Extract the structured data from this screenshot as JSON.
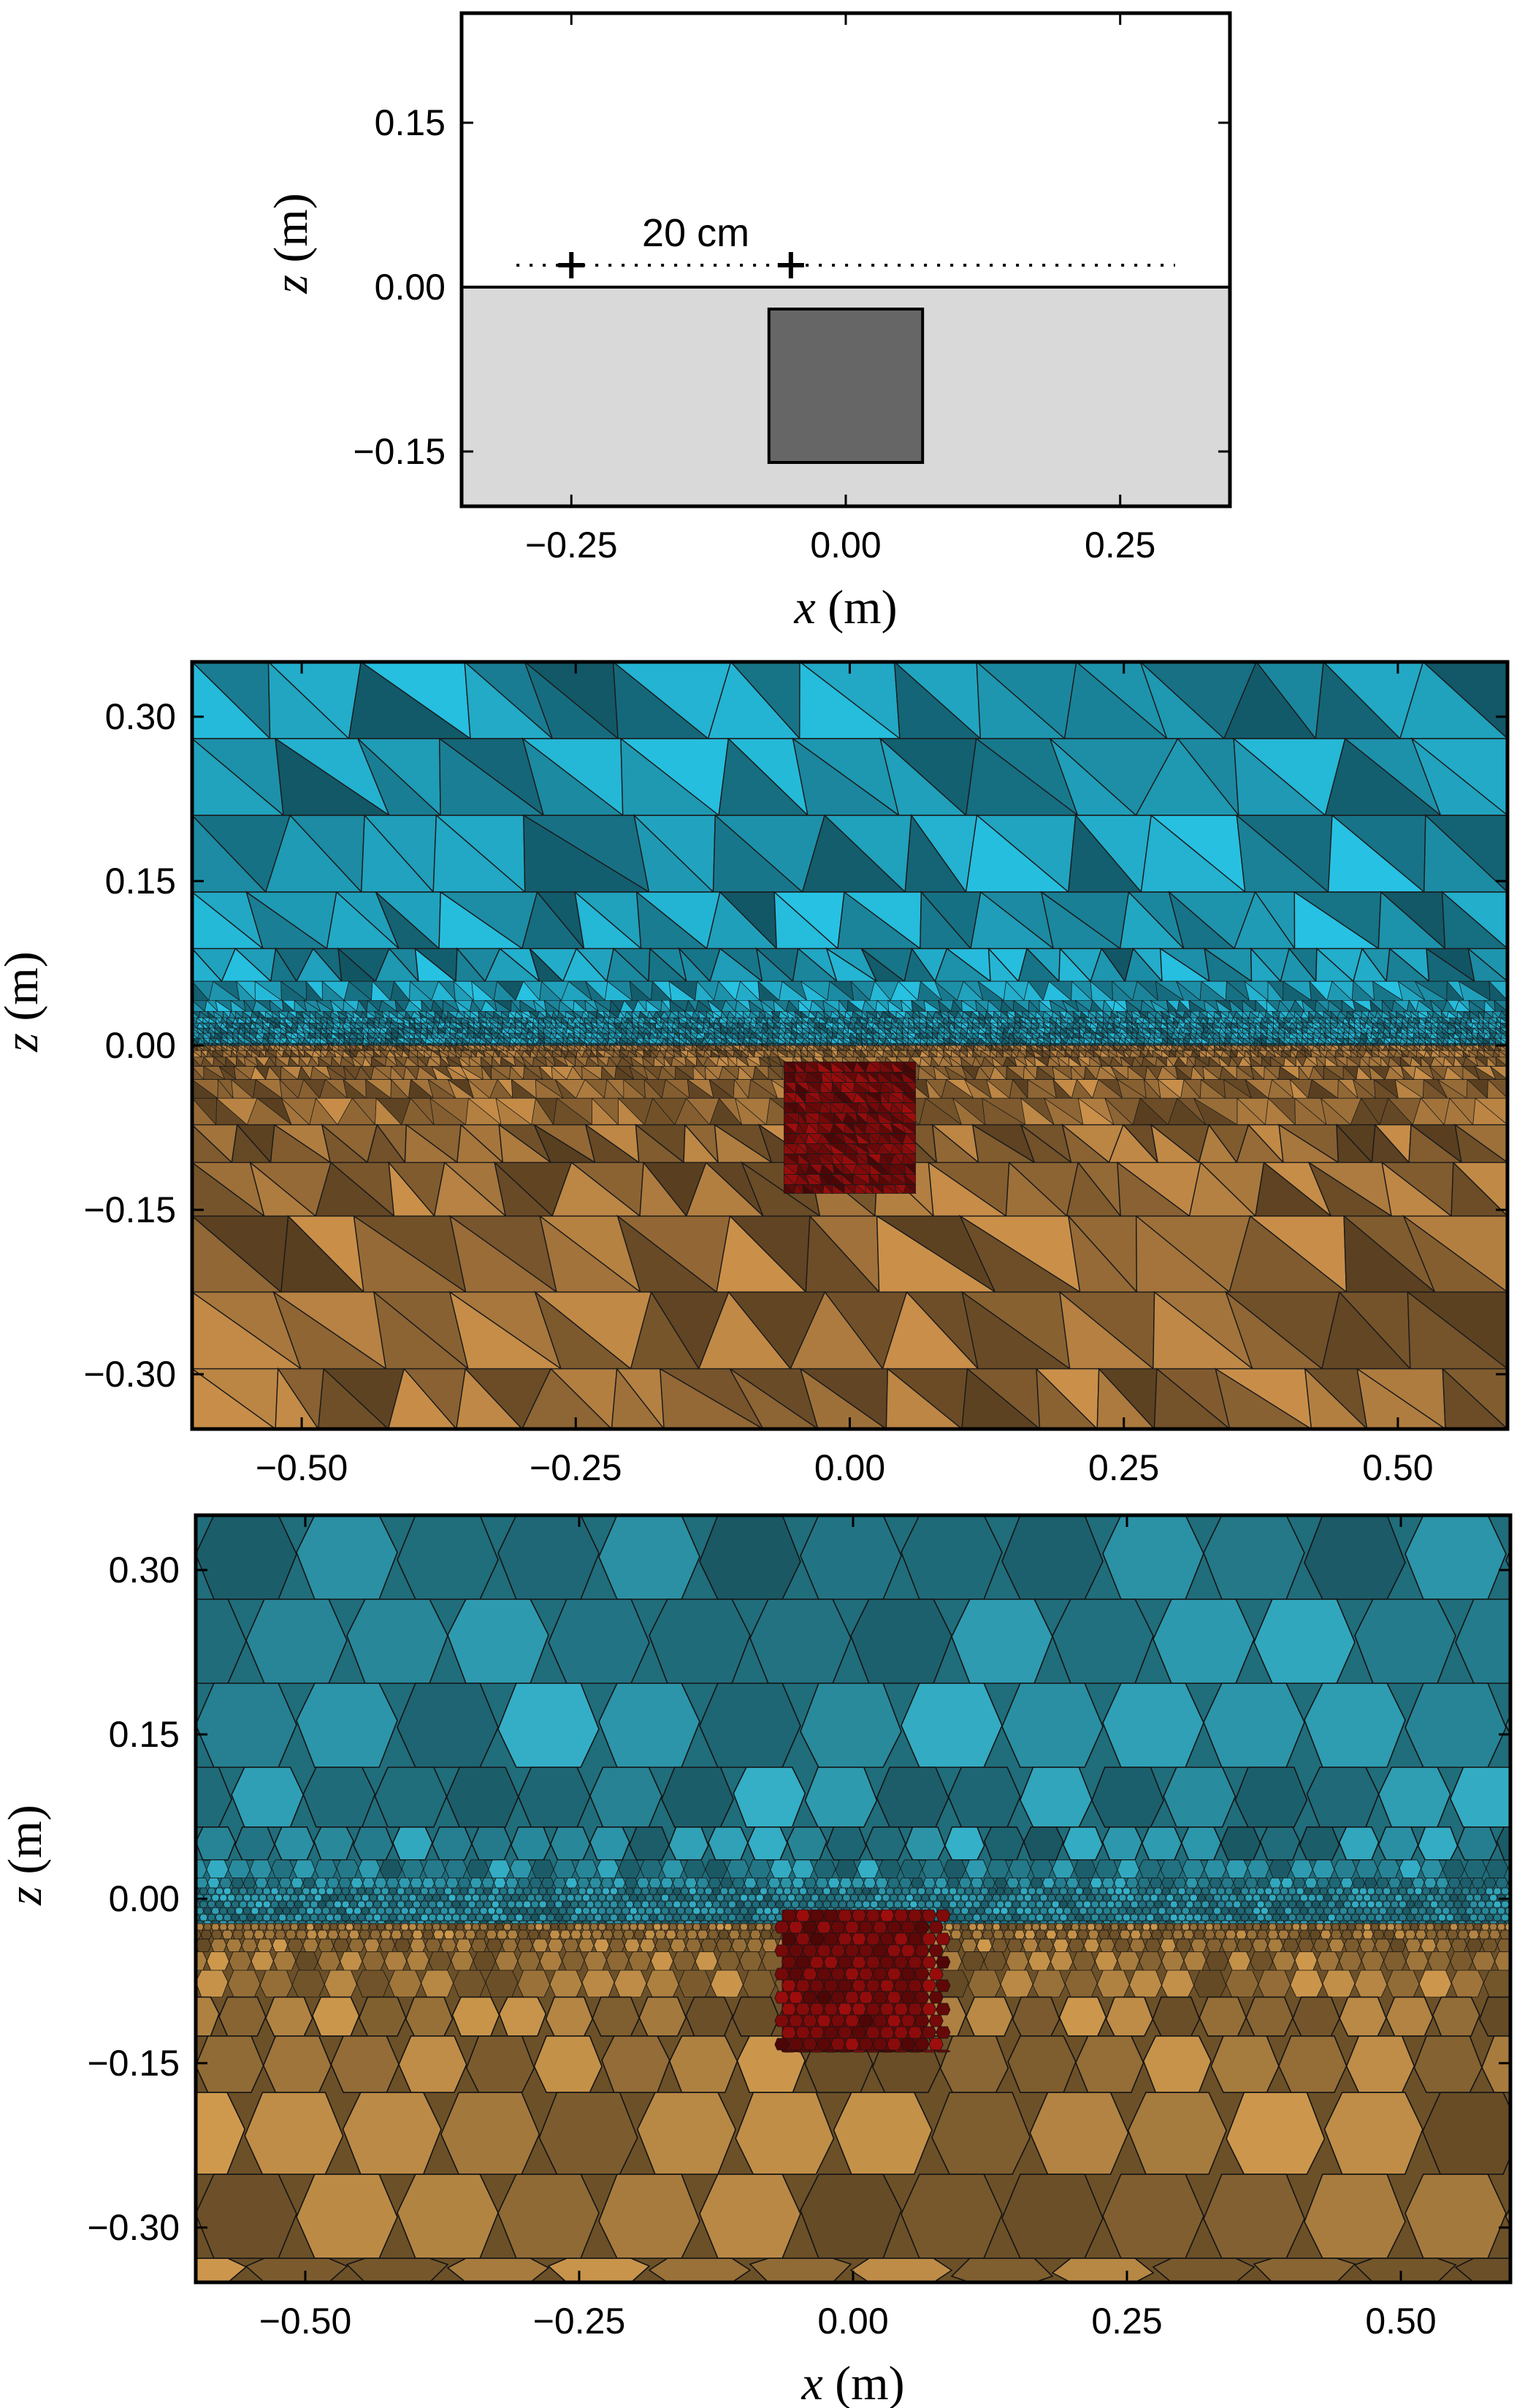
{
  "panels": [
    {
      "id": "geometry",
      "x_ticks": [
        "−0.25",
        "0.00",
        "0.25"
      ],
      "x_tick_values": [
        -0.25,
        0.0,
        0.25
      ],
      "z_ticks": [
        "0.15",
        "0.00",
        "−0.15"
      ],
      "z_tick_values": [
        0.15,
        0.0,
        -0.15
      ],
      "x_range": [
        -0.35,
        0.35
      ],
      "z_range": [
        -0.2,
        0.25
      ],
      "xlabel_var": "x",
      "xlabel_unit": " (m)",
      "ylabel_var": "z",
      "ylabel_unit": " (m)",
      "annotation": "20 cm",
      "receivers_x": [
        -0.25,
        -0.05
      ],
      "survey_line": {
        "x_range": [
          -0.3,
          0.3
        ],
        "z": 0.02
      },
      "block": {
        "x_range": [
          -0.07,
          0.07
        ],
        "z_range": [
          -0.16,
          -0.02
        ]
      }
    },
    {
      "id": "tetrahedral-mesh",
      "x_ticks": [
        "−0.50",
        "−0.25",
        "0.00",
        "0.25",
        "0.50"
      ],
      "x_tick_values": [
        -0.5,
        -0.25,
        0.0,
        0.25,
        0.5
      ],
      "z_ticks": [
        "0.30",
        "0.15",
        "0.00",
        "−0.15",
        "−0.30"
      ],
      "z_tick_values": [
        0.3,
        0.15,
        0.0,
        -0.15,
        -0.3
      ],
      "x_range": [
        -0.6,
        0.6
      ],
      "z_range": [
        -0.35,
        0.35
      ],
      "ylabel_var": "z",
      "ylabel_unit": " (m)",
      "block": {
        "x_range": [
          -0.06,
          0.06
        ],
        "z_range": [
          -0.135,
          -0.015
        ]
      }
    },
    {
      "id": "voronoi-mesh",
      "x_ticks": [
        "−0.50",
        "−0.25",
        "0.00",
        "0.25",
        "0.50"
      ],
      "x_tick_values": [
        -0.5,
        -0.25,
        0.0,
        0.25,
        0.5
      ],
      "z_ticks": [
        "0.30",
        "0.15",
        "0.00",
        "−0.15",
        "−0.30"
      ],
      "z_tick_values": [
        0.3,
        0.15,
        0.0,
        -0.15,
        -0.3
      ],
      "x_range": [
        -0.6,
        0.6
      ],
      "z_range": [
        -0.35,
        0.35
      ],
      "xlabel_var": "x",
      "xlabel_unit": " (m)",
      "ylabel_var": "z",
      "ylabel_unit": " (m)",
      "block": {
        "x_range": [
          -0.065,
          0.065
        ],
        "z_range": [
          -0.14,
          -0.01
        ]
      }
    }
  ],
  "colors": {
    "ground": "#d9d9d9",
    "block": "#666666",
    "air_mesh": "#22a9c6",
    "soil_mesh": "#b07d40",
    "target_mesh": "#8b0b0b",
    "air_voronoi": "#2e9bb0",
    "soil_voronoi": "#b48543"
  }
}
